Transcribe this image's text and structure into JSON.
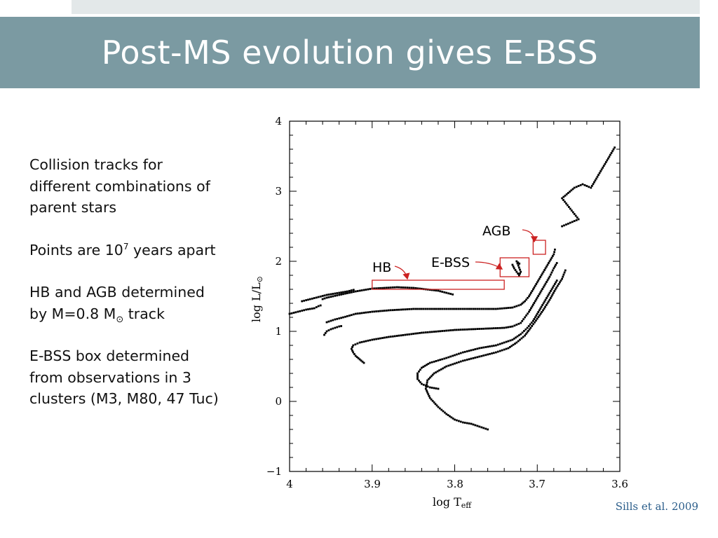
{
  "slide": {
    "title": "Post-MS evolution gives E-BSS",
    "bullets": {
      "b1_line1": "Collision tracks for",
      "b1_line2": "different combinations of",
      "b1_line3": "parent stars",
      "b2_pre": "Points are 10",
      "b2_sup": "7",
      "b2_post": " years apart",
      "b3_line1": "HB and AGB determined",
      "b3_line2_pre": "by M=0.8 M",
      "b3_sun": "⊙",
      "b3_line2_post": " track",
      "b4_line1": "E-BSS box determined",
      "b4_line2": "from observations in 3",
      "b4_line3": "clusters (M3, M80, 47 Tuc)"
    },
    "citation": "Sills et al. 2009"
  },
  "colors": {
    "title_band": "#7b9aa2",
    "strip": "#e3e8e9",
    "box": "#cc2222",
    "citation": "#2a5d8a"
  },
  "chart_data": {
    "type": "scatter",
    "xlabel": "log T",
    "xlabel_sub": "eff",
    "ylabel": "log L/L",
    "ylabel_sun": "⊙",
    "xlim": [
      4.0,
      3.6
    ],
    "ylim": [
      -1,
      4
    ],
    "x_ticks": [
      "4",
      "3.9",
      "3.8",
      "3.7",
      "3.6"
    ],
    "y_ticks": [
      "−1",
      "0",
      "1",
      "2",
      "3",
      "4"
    ],
    "boxes": [
      {
        "label": "HB",
        "x": [
          3.74,
          3.9
        ],
        "y": [
          1.6,
          1.73
        ]
      },
      {
        "label": "E-BSS",
        "x": [
          3.71,
          3.745
        ],
        "y": [
          1.78,
          2.05
        ]
      },
      {
        "label": "AGB",
        "x": [
          3.69,
          3.705
        ],
        "y": [
          2.1,
          2.3
        ]
      }
    ],
    "annotations": [
      "HB",
      "E-BSS",
      "AGB"
    ],
    "tracks": [
      {
        "name": "",
        "points": [
          [
            4.0,
            1.25
          ],
          [
            3.99,
            1.28
          ],
          [
            3.98,
            1.31
          ],
          [
            3.97,
            1.33
          ],
          [
            3.965,
            1.36
          ],
          [
            3.96,
            1.38
          ]
        ]
      },
      {
        "name": "",
        "points": [
          [
            3.96,
            1.46
          ],
          [
            3.955,
            1.48
          ],
          [
            3.94,
            1.52
          ],
          [
            3.92,
            1.57
          ],
          [
            3.9,
            1.61
          ],
          [
            3.87,
            1.63
          ],
          [
            3.85,
            1.62
          ],
          [
            3.82,
            1.58
          ],
          [
            3.8,
            1.52
          ]
        ]
      },
      {
        "name": "",
        "points": [
          [
            3.985,
            1.43
          ],
          [
            3.975,
            1.46
          ],
          [
            3.965,
            1.49
          ],
          [
            3.955,
            1.52
          ],
          [
            3.945,
            1.54
          ],
          [
            3.93,
            1.57
          ],
          [
            3.92,
            1.6
          ]
        ]
      },
      {
        "name": "",
        "points": [
          [
            3.958,
            0.95
          ],
          [
            3.955,
            1.0
          ],
          [
            3.95,
            1.03
          ],
          [
            3.945,
            1.05
          ],
          [
            3.94,
            1.07
          ],
          [
            3.935,
            1.08
          ]
        ]
      },
      {
        "name": "",
        "points": [
          [
            3.955,
            1.13
          ],
          [
            3.945,
            1.17
          ],
          [
            3.935,
            1.2
          ],
          [
            3.92,
            1.25
          ],
          [
            3.9,
            1.28
          ],
          [
            3.88,
            1.3
          ],
          [
            3.85,
            1.32
          ],
          [
            3.82,
            1.32
          ],
          [
            3.79,
            1.32
          ],
          [
            3.77,
            1.32
          ],
          [
            3.75,
            1.32
          ],
          [
            3.73,
            1.34
          ],
          [
            3.72,
            1.38
          ],
          [
            3.715,
            1.43
          ],
          [
            3.71,
            1.5
          ],
          [
            3.705,
            1.6
          ],
          [
            3.7,
            1.7
          ],
          [
            3.695,
            1.8
          ],
          [
            3.69,
            1.9
          ],
          [
            3.685,
            2.0
          ],
          [
            3.68,
            2.1
          ],
          [
            3.678,
            2.2
          ]
        ]
      },
      {
        "name": "",
        "points": [
          [
            3.91,
            0.55
          ],
          [
            3.915,
            0.6
          ],
          [
            3.92,
            0.65
          ],
          [
            3.923,
            0.7
          ],
          [
            3.925,
            0.75
          ],
          [
            3.923,
            0.8
          ],
          [
            3.915,
            0.84
          ],
          [
            3.9,
            0.88
          ],
          [
            3.88,
            0.92
          ],
          [
            3.86,
            0.95
          ],
          [
            3.84,
            0.98
          ],
          [
            3.82,
            1.0
          ],
          [
            3.8,
            1.02
          ],
          [
            3.78,
            1.03
          ],
          [
            3.76,
            1.04
          ],
          [
            3.74,
            1.05
          ],
          [
            3.73,
            1.07
          ],
          [
            3.72,
            1.12
          ],
          [
            3.715,
            1.2
          ],
          [
            3.71,
            1.28
          ],
          [
            3.705,
            1.38
          ],
          [
            3.7,
            1.48
          ],
          [
            3.695,
            1.58
          ],
          [
            3.69,
            1.68
          ],
          [
            3.685,
            1.78
          ],
          [
            3.68,
            1.9
          ],
          [
            3.675,
            2.0
          ]
        ]
      },
      {
        "name": "",
        "points": [
          [
            3.82,
            0.18
          ],
          [
            3.83,
            0.2
          ],
          [
            3.84,
            0.25
          ],
          [
            3.845,
            0.32
          ],
          [
            3.845,
            0.4
          ],
          [
            3.84,
            0.48
          ],
          [
            3.83,
            0.55
          ],
          [
            3.81,
            0.62
          ],
          [
            3.79,
            0.7
          ],
          [
            3.77,
            0.76
          ],
          [
            3.75,
            0.8
          ],
          [
            3.74,
            0.84
          ],
          [
            3.73,
            0.88
          ],
          [
            3.72,
            0.96
          ],
          [
            3.712,
            1.05
          ],
          [
            3.705,
            1.15
          ],
          [
            3.7,
            1.25
          ],
          [
            3.695,
            1.35
          ],
          [
            3.69,
            1.45
          ],
          [
            3.685,
            1.55
          ],
          [
            3.68,
            1.65
          ],
          [
            3.675,
            1.75
          ]
        ]
      },
      {
        "name": "",
        "points": [
          [
            3.76,
            -0.4
          ],
          [
            3.77,
            -0.36
          ],
          [
            3.78,
            -0.32
          ],
          [
            3.79,
            -0.3
          ],
          [
            3.8,
            -0.26
          ],
          [
            3.81,
            -0.18
          ],
          [
            3.82,
            -0.08
          ],
          [
            3.83,
            0.05
          ],
          [
            3.835,
            0.18
          ],
          [
            3.833,
            0.3
          ],
          [
            3.825,
            0.4
          ],
          [
            3.81,
            0.5
          ],
          [
            3.79,
            0.58
          ],
          [
            3.77,
            0.64
          ],
          [
            3.75,
            0.7
          ],
          [
            3.735,
            0.76
          ],
          [
            3.725,
            0.84
          ],
          [
            3.715,
            0.94
          ],
          [
            3.708,
            1.05
          ],
          [
            3.7,
            1.18
          ],
          [
            3.693,
            1.3
          ],
          [
            3.685,
            1.45
          ],
          [
            3.678,
            1.6
          ],
          [
            3.67,
            1.75
          ],
          [
            3.665,
            1.9
          ]
        ]
      },
      {
        "name": "",
        "points": [
          [
            3.67,
            2.5
          ],
          [
            3.66,
            2.55
          ],
          [
            3.65,
            2.6
          ],
          [
            3.66,
            2.75
          ],
          [
            3.67,
            2.9
          ],
          [
            3.655,
            3.05
          ],
          [
            3.645,
            3.1
          ],
          [
            3.635,
            3.05
          ],
          [
            3.605,
            3.65
          ]
        ]
      },
      {
        "name": "",
        "points": [
          [
            3.73,
            1.95
          ],
          [
            3.728,
            1.9
          ],
          [
            3.725,
            1.85
          ],
          [
            3.722,
            1.8
          ],
          [
            3.72,
            1.85
          ],
          [
            3.725,
            2.0
          ],
          [
            3.72,
            1.95
          ]
        ]
      }
    ]
  }
}
